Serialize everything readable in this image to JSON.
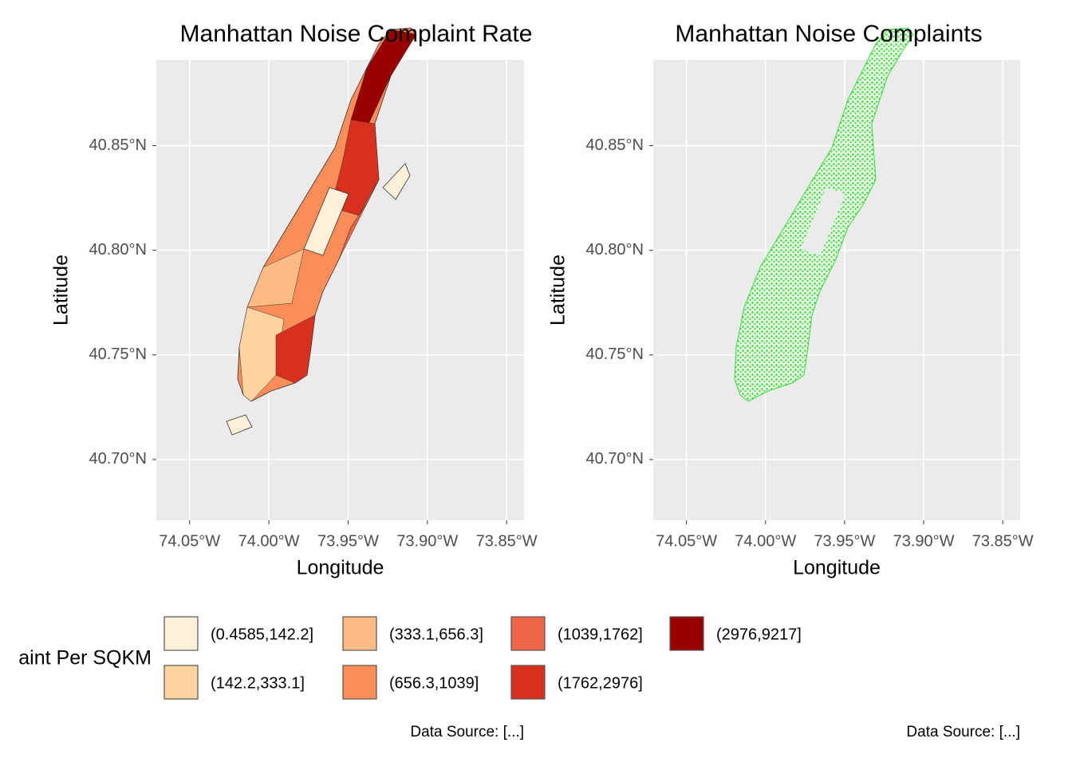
{
  "chart_data": [
    {
      "type": "map",
      "title": "Manhattan Noise Complaint Rate",
      "x_label": "Longitude",
      "y_label": "Latitude",
      "xlim": [
        -74.071,
        -73.839
      ],
      "ylim": [
        40.671,
        40.891
      ],
      "xticks": [
        {
          "value": -74.05,
          "label": "74.05°W"
        },
        {
          "value": -74.0,
          "label": "74.00°W"
        },
        {
          "value": -73.95,
          "label": "73.95°W"
        },
        {
          "value": -73.9,
          "label": "73.90°W"
        },
        {
          "value": -73.85,
          "label": "73.85°W"
        }
      ],
      "yticks": [
        {
          "value": 40.7,
          "label": "40.70°N"
        },
        {
          "value": 40.75,
          "label": "40.75°N"
        },
        {
          "value": 40.8,
          "label": "40.80°N"
        },
        {
          "value": 40.85,
          "label": "40.85°N"
        }
      ],
      "grid": true,
      "legend": {
        "title": "aint Per SQKM",
        "labels": [
          "(0.4585,142.2]",
          "(142.2,333.1]",
          "(333.1,656.3]",
          "(656.3,1039]",
          "(1039,1762]",
          "(1762,2976]",
          "(2976,9217]"
        ],
        "colors": [
          "#fef0d9",
          "#fdd49e",
          "#fdbb84",
          "#fc8d59",
          "#ef6548",
          "#d7301f",
          "#990000"
        ]
      },
      "caption": "Data Source: [...]"
    },
    {
      "type": "map",
      "title": "Manhattan Noise Complaints",
      "x_label": "Longitude",
      "y_label": "Latitude",
      "xlim": [
        -74.071,
        -73.839
      ],
      "ylim": [
        40.671,
        40.891
      ],
      "xticks": [
        {
          "value": -74.05,
          "label": "74.05°W"
        },
        {
          "value": -74.0,
          "label": "74.00°W"
        },
        {
          "value": -73.95,
          "label": "73.95°W"
        },
        {
          "value": -73.9,
          "label": "73.90°W"
        },
        {
          "value": -73.85,
          "label": "73.85°W"
        }
      ],
      "yticks": [
        {
          "value": 40.7,
          "label": "40.70°N"
        },
        {
          "value": 40.75,
          "label": "40.75°N"
        },
        {
          "value": 40.8,
          "label": "40.80°N"
        },
        {
          "value": 40.85,
          "label": "40.85°N"
        }
      ],
      "grid": true,
      "point_color": "#22dd22",
      "caption": "Data Source: [...]"
    }
  ]
}
